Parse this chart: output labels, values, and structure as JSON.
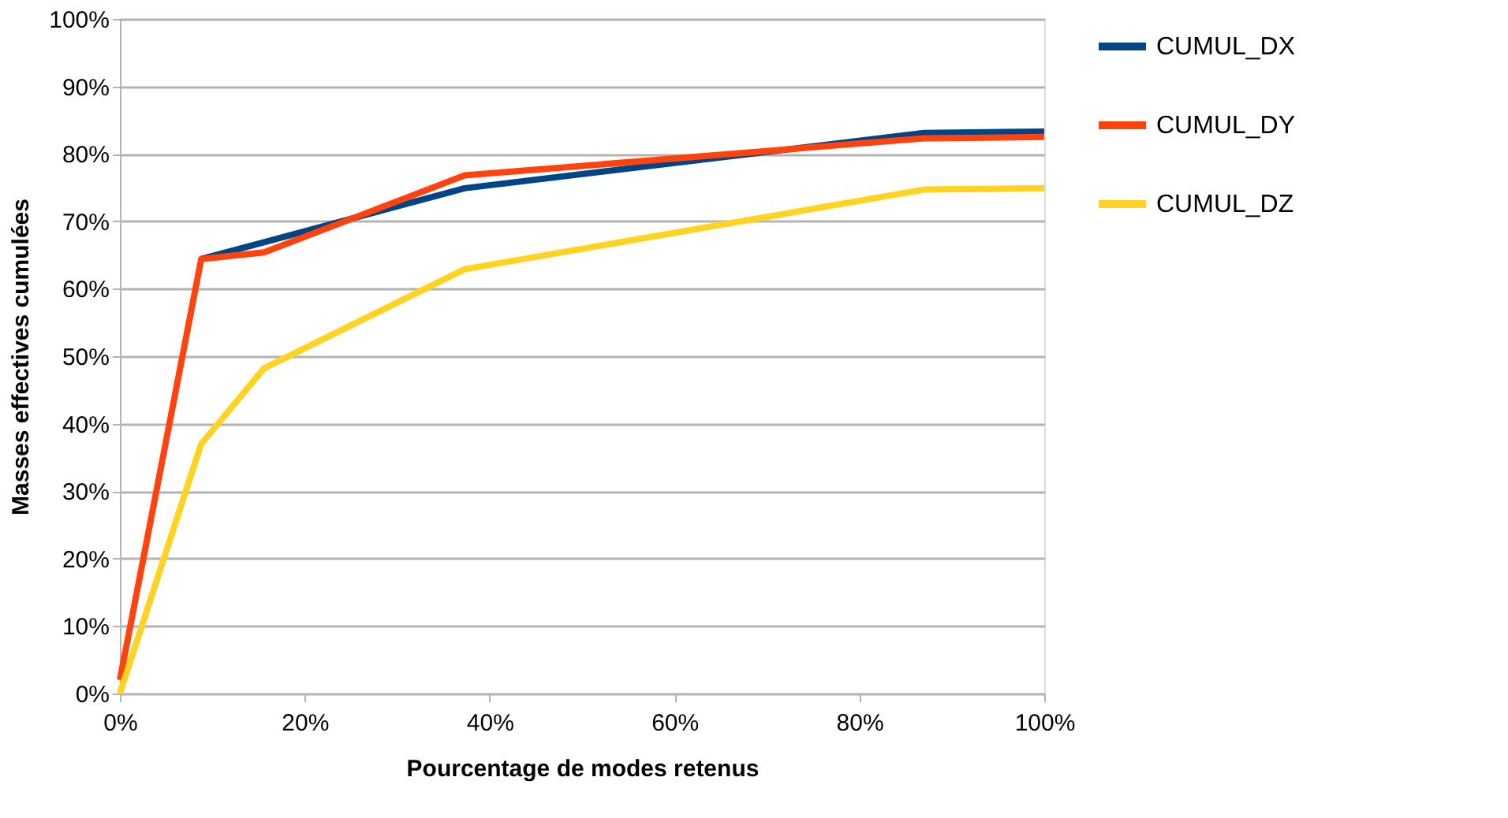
{
  "chart_data": {
    "type": "line",
    "xlabel": "Pourcentage de modes retenus",
    "ylabel": "Masses effectives cumulées",
    "x": [
      0,
      8.8,
      15.6,
      37.3,
      87,
      100
    ],
    "series": [
      {
        "name": "CUMUL_DX",
        "color": "#004586",
        "values": [
          null,
          64.4,
          66.9,
          74.9,
          83.1,
          83.3
        ]
      },
      {
        "name": "CUMUL_DY",
        "color": "#ff420e",
        "values": [
          2,
          64.4,
          65.4,
          76.8,
          82.3,
          82.5
        ]
      },
      {
        "name": "CUMUL_DZ",
        "color": "#ffd320",
        "values": [
          0,
          37,
          48.2,
          62.9,
          74.7,
          74.9
        ]
      }
    ],
    "xlim": [
      0,
      100
    ],
    "xticks": [
      {
        "value": 0,
        "label": "0%"
      },
      {
        "value": 20,
        "label": "20%"
      },
      {
        "value": 40,
        "label": "40%"
      },
      {
        "value": 60,
        "label": "60%"
      },
      {
        "value": 80,
        "label": "80%"
      },
      {
        "value": 100,
        "label": "100%"
      }
    ],
    "ylim": [
      0,
      100
    ],
    "yticks": [
      {
        "value": 0,
        "label": "0%"
      },
      {
        "value": 10,
        "label": "10%"
      },
      {
        "value": 20,
        "label": "20%"
      },
      {
        "value": 30,
        "label": "30%"
      },
      {
        "value": 40,
        "label": "40%"
      },
      {
        "value": 50,
        "label": "50%"
      },
      {
        "value": 60,
        "label": "60%"
      },
      {
        "value": 70,
        "label": "70%"
      },
      {
        "value": 80,
        "label": "80%"
      },
      {
        "value": 90,
        "label": "90%"
      },
      {
        "value": 100,
        "label": "100%"
      }
    ],
    "grid": "y",
    "legend": "right",
    "marker": "none",
    "line_style": "solid"
  }
}
